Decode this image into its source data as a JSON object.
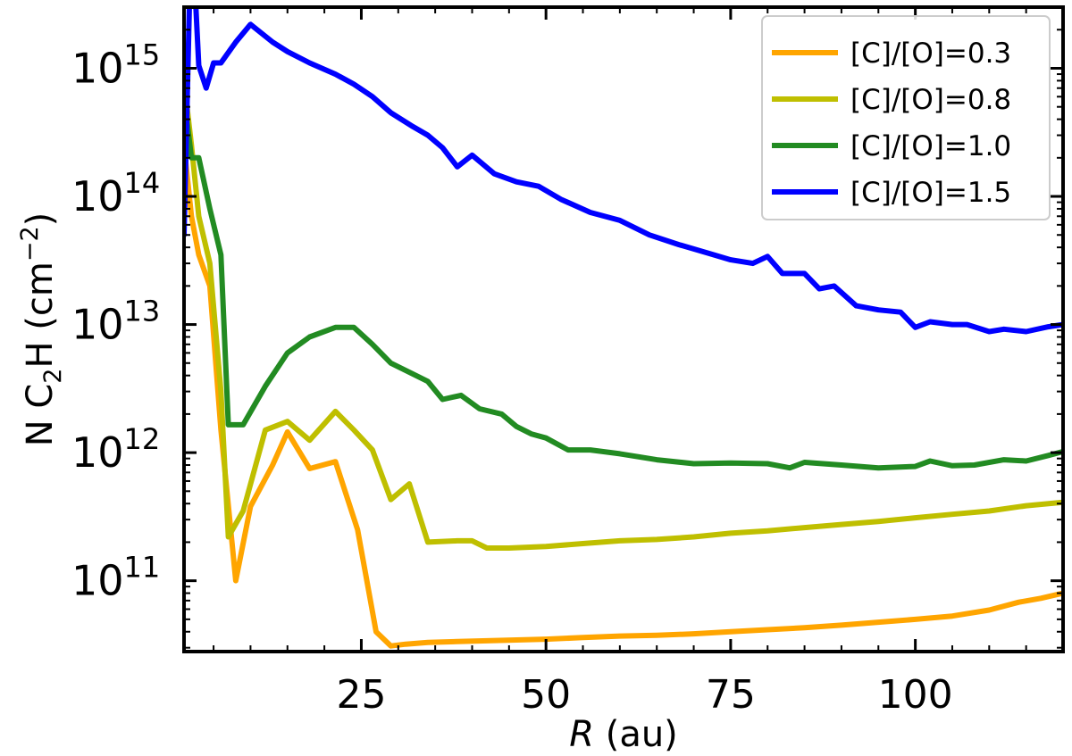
{
  "chart_data": {
    "type": "line",
    "xlabel_var": "R",
    "xlabel_unit": " (au)",
    "ylabel_prefix": "N C",
    "ylabel_sub": "2",
    "ylabel_mid": "H (cm",
    "ylabel_sup": "−2",
    "ylabel_suffix": ")",
    "xlim": [
      1,
      120
    ],
    "ylim": [
      28000000000.0,
      3000000000000000.0
    ],
    "yscale": "log",
    "grid": false,
    "legend_position": "top-right",
    "x_ticks": [
      25,
      50,
      75,
      100
    ],
    "x_tick_labels": [
      "25",
      "50",
      "75",
      "100"
    ],
    "y_ticks": [
      100000000000.0,
      1000000000000.0,
      10000000000000.0,
      100000000000000.0,
      1000000000000000.0
    ],
    "y_tick_base": "10",
    "y_tick_exps": [
      "11",
      "12",
      "13",
      "14",
      "15"
    ],
    "series": [
      {
        "name": "[C]/[O]=0.3",
        "color": "#FFA500",
        "x": [
          1,
          2,
          3,
          4.5,
          6,
          8,
          10,
          13,
          15,
          18,
          21.5,
          24.5,
          27,
          29,
          31,
          34,
          38,
          42,
          46,
          50,
          55,
          60,
          65,
          70,
          75,
          80,
          85,
          90,
          95,
          100,
          105,
          110,
          114,
          117,
          120
        ],
        "y": [
          250000000000000.0,
          70000000000000.0,
          35000000000000.0,
          20000000000000.0,
          1500000000000.0,
          100000000000.0,
          380000000000.0,
          800000000000.0,
          1450000000000.0,
          750000000000.0,
          850000000000.0,
          250000000000.0,
          40000000000.0,
          31000000000.0,
          32000000000.0,
          33000000000.0,
          33500000000.0,
          34000000000.0,
          34500000000.0,
          35000000000.0,
          36000000000.0,
          37000000000.0,
          37500000000.0,
          38500000000.0,
          40000000000.0,
          41500000000.0,
          43000000000.0,
          45000000000.0,
          47500000000.0,
          50000000000.0,
          53000000000.0,
          59000000000.0,
          68000000000.0,
          73000000000.0,
          80000000000.0
        ]
      },
      {
        "name": "[C]/[O]=0.8",
        "color": "#BFBF00",
        "x": [
          1,
          2,
          3,
          4.5,
          6,
          7,
          9,
          12,
          15,
          18,
          21.5,
          24,
          26.5,
          29,
          31.5,
          34,
          38,
          40,
          42,
          45,
          50,
          55,
          60,
          65,
          70,
          75,
          80,
          85,
          90,
          95,
          100,
          105,
          110,
          115,
          120
        ],
        "y": [
          800000000000000.0,
          250000000000000.0,
          70000000000000.0,
          30000000000000.0,
          3000000000000.0,
          220000000000.0,
          350000000000.0,
          1500000000000.0,
          1750000000000.0,
          1250000000000.0,
          2100000000000.0,
          1500000000000.0,
          1050000000000.0,
          430000000000.0,
          570000000000.0,
          200000000000.0,
          205000000000.0,
          205000000000.0,
          180000000000.0,
          180000000000.0,
          185000000000.0,
          195000000000.0,
          205000000000.0,
          210000000000.0,
          220000000000.0,
          235000000000.0,
          245000000000.0,
          260000000000.0,
          275000000000.0,
          290000000000.0,
          310000000000.0,
          330000000000.0,
          350000000000.0,
          385000000000.0,
          410000000000.0
        ]
      },
      {
        "name": "[C]/[O]=1.0",
        "color": "#228B22",
        "x": [
          1,
          2,
          3,
          4.5,
          6,
          7,
          9,
          12,
          15,
          18,
          21.5,
          24,
          26.5,
          29,
          32,
          34,
          36,
          38.5,
          41,
          44,
          46,
          48,
          50,
          53,
          56,
          60,
          65,
          70,
          75,
          80,
          83,
          85,
          90,
          95,
          100,
          102,
          105,
          108,
          112,
          115,
          118,
          120
        ],
        "y": [
          600000000000000.0,
          200000000000000.0,
          200000000000000.0,
          80000000000000.0,
          35000000000000.0,
          1650000000000.0,
          1650000000000.0,
          3300000000000.0,
          6000000000000.0,
          8000000000000.0,
          9500000000000.0,
          9500000000000.0,
          7000000000000.0,
          5000000000000.0,
          4100000000000.0,
          3600000000000.0,
          2600000000000.0,
          2800000000000.0,
          2200000000000.0,
          2000000000000.0,
          1600000000000.0,
          1400000000000.0,
          1300000000000.0,
          1050000000000.0,
          1050000000000.0,
          980000000000.0,
          880000000000.0,
          820000000000.0,
          830000000000.0,
          820000000000.0,
          760000000000.0,
          840000000000.0,
          800000000000.0,
          760000000000.0,
          780000000000.0,
          860000000000.0,
          790000000000.0,
          800000000000.0,
          880000000000.0,
          860000000000.0,
          950000000000.0,
          1020000000000.0
        ]
      },
      {
        "name": "[C]/[O]=1.5",
        "color": "#0000FF",
        "x": [
          1,
          2,
          3,
          4,
          5,
          6,
          8,
          10,
          13,
          15,
          18,
          21.5,
          24,
          26.5,
          29,
          32,
          34,
          36,
          38,
          40,
          43,
          46,
          49,
          52,
          56,
          60,
          64,
          68,
          72,
          75,
          78,
          80,
          82,
          85,
          87,
          89,
          92,
          95,
          98,
          100,
          102,
          105,
          107,
          110,
          112,
          115,
          118,
          120
        ],
        "y": [
          50000000000000.0,
          1.5e+16,
          1050000000000000.0,
          700000000000000.0,
          1100000000000000.0,
          1100000000000000.0,
          1600000000000000.0,
          2200000000000000.0,
          1600000000000000.0,
          1350000000000000.0,
          1100000000000000.0,
          900000000000000.0,
          750000000000000.0,
          600000000000000.0,
          450000000000000.0,
          350000000000000.0,
          300000000000000.0,
          240000000000000.0,
          170000000000000.0,
          210000000000000.0,
          150000000000000.0,
          130000000000000.0,
          120000000000000.0,
          95000000000000.0,
          75000000000000.0,
          65000000000000.0,
          50000000000000.0,
          42000000000000.0,
          36000000000000.0,
          32000000000000.0,
          30000000000000.0,
          34000000000000.0,
          25000000000000.0,
          25000000000000.0,
          19000000000000.0,
          20000000000000.0,
          14000000000000.0,
          13000000000000.0,
          12500000000000.0,
          9500000000000.0,
          10500000000000.0,
          10000000000000.0,
          10000000000000.0,
          8800000000000.0,
          9200000000000.0,
          8800000000000.0,
          9600000000000.0,
          10000000000000.0
        ]
      }
    ]
  }
}
